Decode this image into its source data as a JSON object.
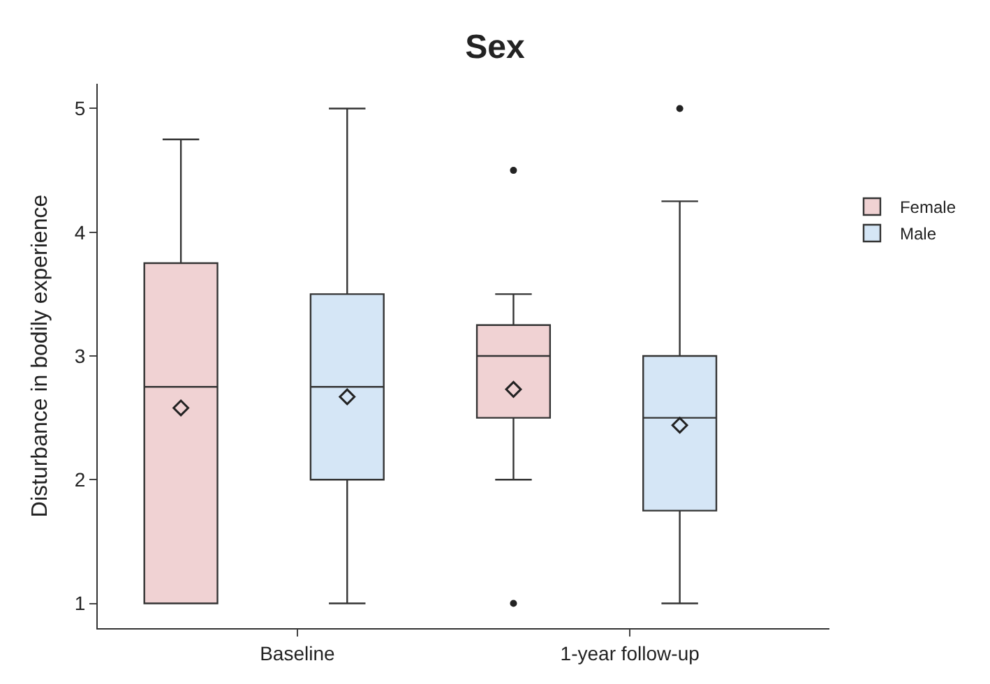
{
  "chart_data": {
    "type": "box",
    "title": "Sex",
    "ylabel": "Disturbance in bodily experience",
    "categories": [
      "Baseline",
      "1-year follow-up"
    ],
    "series": [
      {
        "name": "Female",
        "color": "#f0d2d3",
        "boxes": [
          {
            "low": 1,
            "q1": 1,
            "median": 2.75,
            "q3": 3.75,
            "high": 4.75,
            "mean": 2.58
          },
          {
            "low": 2,
            "q1": 2.5,
            "median": 3,
            "q3": 3.25,
            "high": 3.5,
            "mean": 2.73,
            "outliers": [
              4.5,
              1
            ]
          }
        ]
      },
      {
        "name": "Male",
        "color": "#d5e6f6",
        "boxes": [
          {
            "low": 1,
            "q1": 2,
            "median": 2.75,
            "q3": 3.5,
            "high": 5,
            "mean": 2.67
          },
          {
            "low": 1,
            "q1": 1.75,
            "median": 2.5,
            "q3": 3,
            "high": 4.25,
            "mean": 2.44,
            "outliers": [
              5
            ]
          }
        ]
      }
    ],
    "ylim": [
      0.8,
      5.2
    ],
    "yticks": [
      1,
      2,
      3,
      4,
      5
    ],
    "legend": "right"
  }
}
